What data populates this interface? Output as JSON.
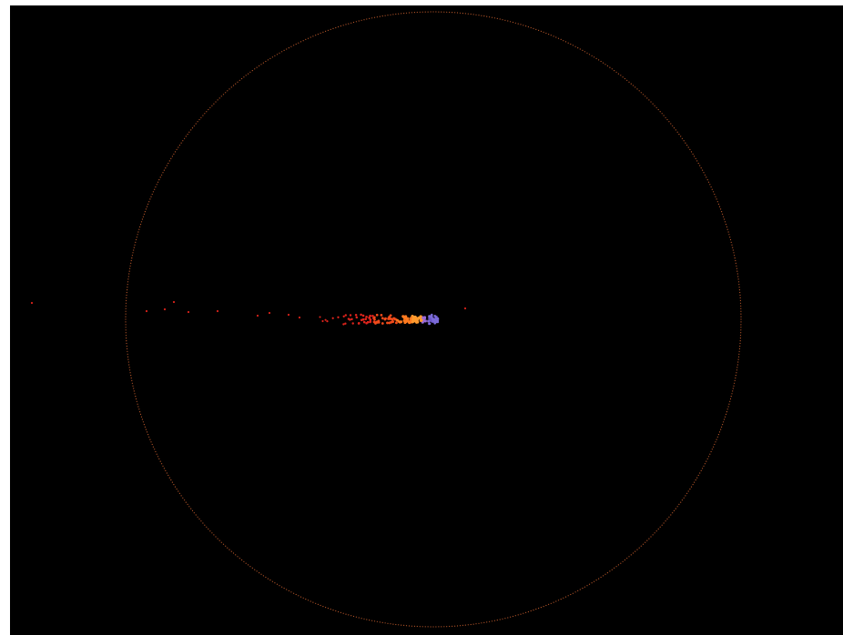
{
  "page": {
    "title": ""
  },
  "theme": {
    "background": "#000000",
    "page_background": "#ffffff",
    "boundary_color": "#b8572a"
  },
  "visualization": {
    "type": "particle-scatter",
    "boundary": {
      "shape": "circle",
      "style": "dotted"
    },
    "trail": {
      "palette": [
        "#e0241c",
        "#f04a1a",
        "#ff7a1f",
        "#ff9a2e",
        "#9a6ad8",
        "#6b55c8"
      ],
      "head_color": "#7b6bd8",
      "particle_count": 140
    }
  }
}
